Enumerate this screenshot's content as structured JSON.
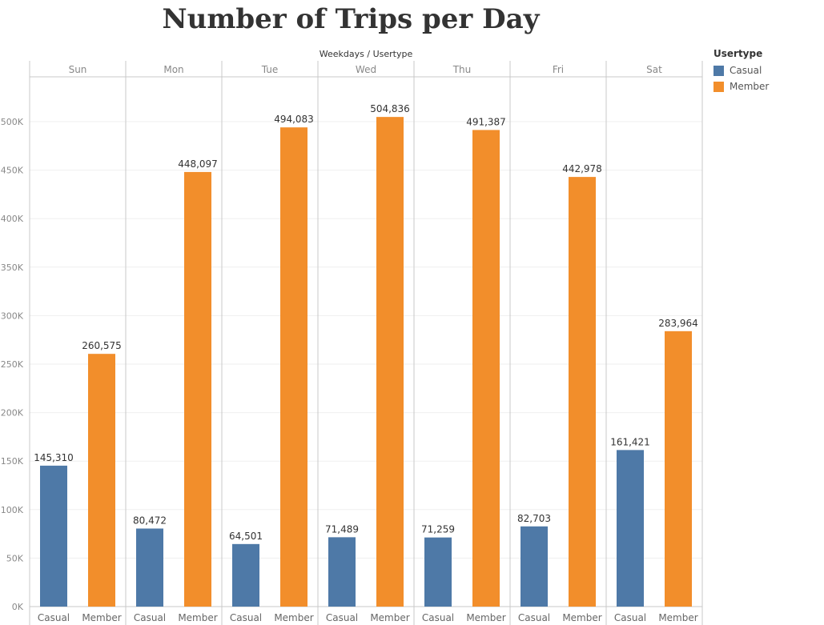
{
  "chart_data": {
    "type": "bar",
    "title": "Number of Trips per Day",
    "column_header": "Weekdays / Usertype",
    "days": [
      "Sun",
      "Mon",
      "Tue",
      "Wed",
      "Thu",
      "Fri",
      "Sat"
    ],
    "subcategories": [
      "Casual",
      "Member"
    ],
    "series": [
      {
        "name": "Casual",
        "color": "#4e79a7",
        "values": [
          145310,
          80472,
          64501,
          71489,
          71259,
          82703,
          161421
        ],
        "labels": [
          "145,310",
          "80,472",
          "64,501",
          "71,489",
          "71,259",
          "82,703",
          "161,421"
        ]
      },
      {
        "name": "Member",
        "color": "#f28e2b",
        "values": [
          260575,
          448097,
          494083,
          504836,
          491387,
          442978,
          283964
        ],
        "labels": [
          "260,575",
          "448,097",
          "494,083",
          "504,836",
          "491,387",
          "442,978",
          "283,964"
        ]
      }
    ],
    "ylim": [
      0,
      540000
    ],
    "yticks": [
      0,
      50000,
      100000,
      150000,
      200000,
      250000,
      300000,
      350000,
      400000,
      450000,
      500000
    ],
    "ytick_labels": [
      "0K",
      "50K",
      "100K",
      "150K",
      "200K",
      "250K",
      "300K",
      "350K",
      "400K",
      "450K",
      "500K"
    ],
    "grid": true,
    "legend": {
      "title": "Usertype",
      "placement": "right",
      "items": [
        {
          "label": "Casual",
          "color": "#4e79a7"
        },
        {
          "label": "Member",
          "color": "#f28e2b"
        }
      ]
    }
  }
}
